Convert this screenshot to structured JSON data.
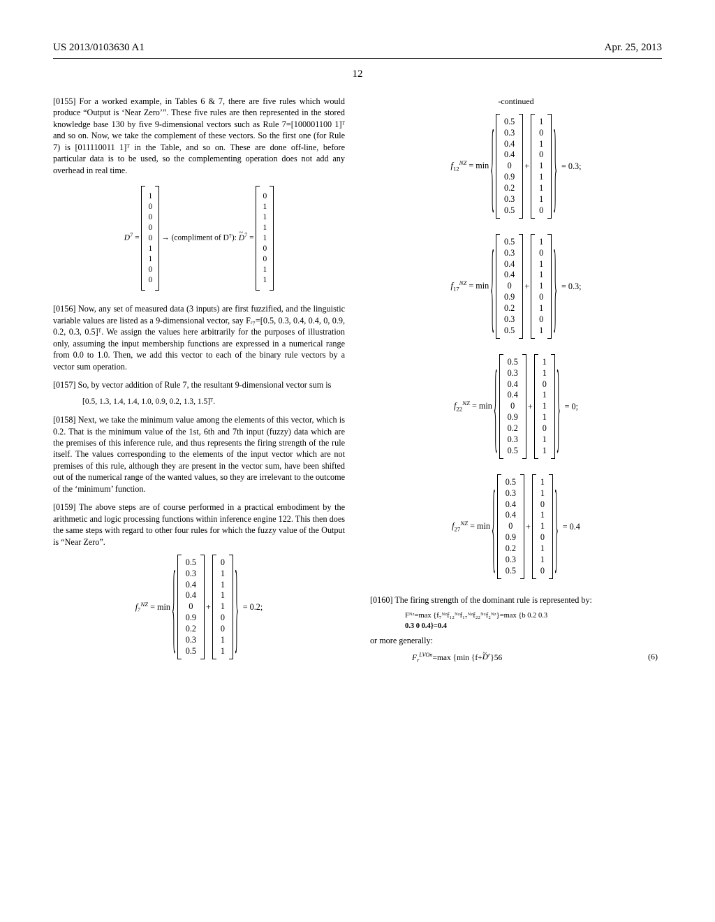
{
  "header": {
    "left": "US 2013/0103630 A1",
    "right": "Apr. 25, 2013"
  },
  "page_number": "12",
  "col1": {
    "p155": "[0155]   For a worked example, in Tables 6 & 7, there are five rules which would produce “Output is ‘Near Zero’”. These five rules are then represented in the stored knowledge base 130 by five 9-dimensional vectors such as Rule 7=[100001100 1]ᵀ and so on. Now, we take the complement of these vectors. So the first one (for Rule 7) is [011110011 1]ᵀ in the Table, and so on. These are done off-line, before particular data is to be used, so the complementing operation does not add any overhead in real time.",
    "d7_left": [
      "1",
      "0",
      "0",
      "0",
      "0",
      "1",
      "1",
      "0",
      "0"
    ],
    "d7_mid": "→ (compliment of  D⁷):  ",
    "d7_right": [
      "0",
      "1",
      "1",
      "1",
      "1",
      "0",
      "0",
      "1",
      "1"
    ],
    "p156": "[0156]   Now, any set of measured data (3 inputs) are first fuzzified, and the linguistic variable values are listed as a 9-dimensional vector, say Fᵣ₇=[0.5, 0.3, 0.4, 0.4, 0, 0.9, 0.2, 0.3, 0.5]ᵀ. We assign the values here arbitrarily for the purposes of illustration only, assuming the input membership functions are expressed in a numerical range from 0.0 to 1.0. Then, we add this vector to each of the binary rule vectors by a vector sum operation.",
    "p157": "[0157]   So, by vector addition of Rule 7, the resultant 9-dimensional vector sum is",
    "p157eq": "[0.5, 1.3, 1.4, 1.4, 1.0, 0.9, 0.2, 1.3, 1.5]ᵀ.",
    "p158": "[0158]   Next, we take the minimum value among the elements of this vector, which is 0.2. That is the minimum value of the 1st, 6th and 7th input (fuzzy) data which are the premises of this inference rule, and thus represents the firing strength of the rule itself. The values corresponding to the elements of the input vector which are not premises of this rule, although they are present in the vector sum, have been shifted out of the numerical range of the wanted values, so they are irrelevant to the outcome of the ‘minimum’ function.",
    "p159": "[0159]   The above steps are of course performed in a practical embodiment by the arithmetic and logic processing functions within inference engine 122. This then does the same steps with regard to other four rules for which the fuzzy value of the Output is “Near Zero”.",
    "f7_lhs": "f₇",
    "f7_sup": "NZ",
    "fvec": [
      "0.5",
      "0.3",
      "0.4",
      "0.4",
      "0",
      "0.9",
      "0.2",
      "0.3",
      "0.5"
    ],
    "f7_bin": [
      "0",
      "1",
      "1",
      "1",
      "1",
      "0",
      "0",
      "1",
      "1"
    ],
    "f7_res": "= 0.2;"
  },
  "col2": {
    "continued": "-continued",
    "f12_bin": [
      "1",
      "0",
      "1",
      "0",
      "1",
      "1",
      "1",
      "1",
      "0"
    ],
    "f12_res": "= 0.3;",
    "f17_bin": [
      "1",
      "0",
      "1",
      "1",
      "1",
      "0",
      "1",
      "0",
      "1"
    ],
    "f17_res": "= 0.3;",
    "f22_bin": [
      "1",
      "1",
      "0",
      "1",
      "1",
      "1",
      "0",
      "1",
      "1"
    ],
    "f22_res": "= 0;",
    "f27_bin": [
      "1",
      "1",
      "0",
      "1",
      "1",
      "0",
      "1",
      "1",
      "0"
    ],
    "f27_res": "= 0.4",
    "p160": "[0160]   The firing strength of the dominant rule is represented by:",
    "firing1": "Fᴺᶻ=max {f₇ᴺᶻf₁₂ᴺᶻf₁₇ᴺᶻf₂₂ᴺᶻf₂ᴺᶻ}=max {b 0.2 0.3",
    "firing2": "0.3 0 0.4}=0.4",
    "or_more": "or more generally:",
    "final_lhs": "F",
    "final_sup": "LVOn",
    "final_sub": "r",
    "final_rhs": "=max {min {f+",
    "final_rhs2": "}56",
    "eqn": "(6)"
  }
}
